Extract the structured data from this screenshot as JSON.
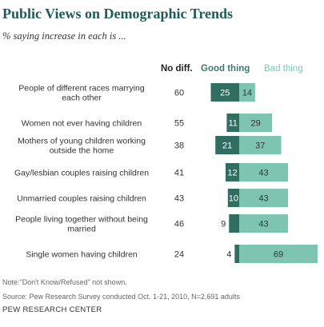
{
  "title": "Public Views on Demographic Trends",
  "subtitle": "% saying increase in each is ...",
  "columns": {
    "no_diff": "No diff.",
    "good": "Good thing",
    "bad": "Bad thing"
  },
  "note": "Note:\"Don't Know/Refused\" not shown.",
  "source": "Source: Pew Research Survey conducted Oct. 1-21, 2010, N=2,691 adults",
  "org": "PEW RESEARCH CENTER",
  "colors": {
    "good": "#2f6e60",
    "bad": "#7dc5b0",
    "title": "#1f5b57"
  },
  "chart_data": {
    "type": "bar",
    "orientation": "horizontal-diverging",
    "categories": [
      [
        "People of different races marrying",
        "each other"
      ],
      [
        "Women not ever having children"
      ],
      [
        "Mothers of young children working",
        "outside the home"
      ],
      [
        "Gay/lesbian couples raising children"
      ],
      [
        "Unmarried couples raising children"
      ],
      [
        "People living together without being",
        "married"
      ],
      [
        "Single women having children"
      ]
    ],
    "no_diff": [
      60,
      55,
      38,
      41,
      43,
      46,
      24
    ],
    "series": [
      {
        "name": "Good thing",
        "values": [
          25,
          11,
          21,
          12,
          10,
          9,
          4
        ]
      },
      {
        "name": "Bad thing",
        "values": [
          14,
          29,
          37,
          43,
          43,
          43,
          69
        ]
      }
    ]
  }
}
